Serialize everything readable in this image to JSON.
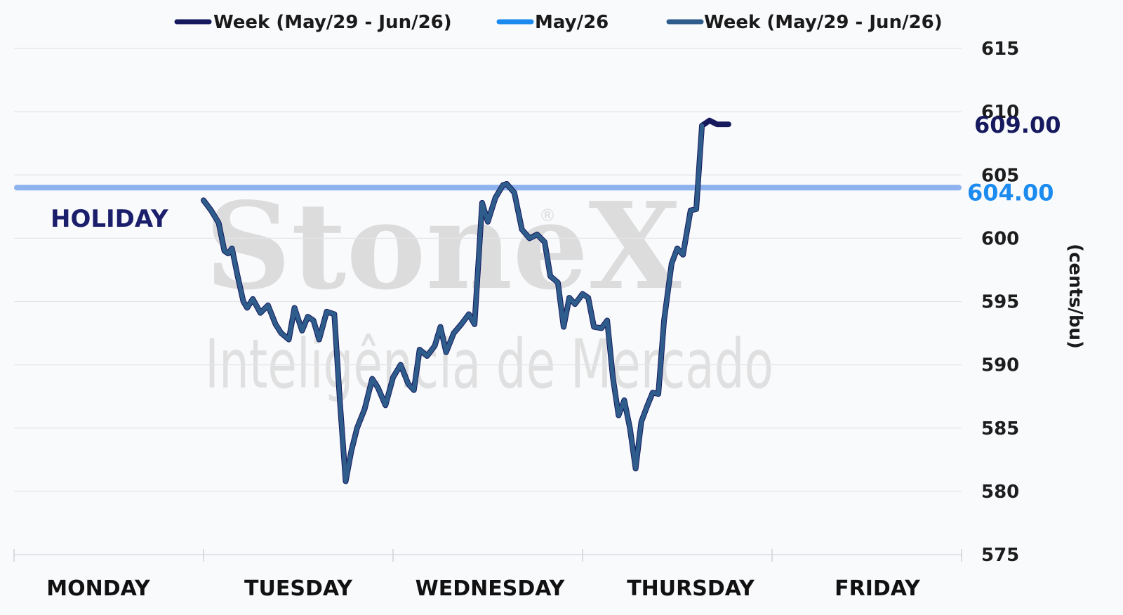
{
  "chart_data": {
    "type": "line",
    "ylabel": "(cents/bu)",
    "ylim": [
      575,
      615
    ],
    "yticks": [
      575,
      580,
      585,
      590,
      595,
      600,
      605,
      610,
      615
    ],
    "days": [
      "MONDAY",
      "TUESDAY",
      "WEDNESDAY",
      "THURSDAY",
      "FRIDAY"
    ],
    "annotation": "HOLIDAY",
    "grid": true,
    "legend_position": "top",
    "watermark": {
      "brand": "StoneX",
      "registered": "®",
      "tagline": "Inteligência de Mercado"
    },
    "series": [
      {
        "name": "Week (May/29 - Jun/26)",
        "color": "#16195e",
        "values": [
          [
            1.0,
            603.0
          ],
          [
            1.04,
            602.2
          ],
          [
            1.08,
            601.2
          ],
          [
            1.11,
            599.0
          ],
          [
            1.13,
            598.8
          ],
          [
            1.15,
            599.2
          ],
          [
            1.18,
            597.0
          ],
          [
            1.21,
            595.0
          ],
          [
            1.23,
            594.5
          ],
          [
            1.26,
            595.2
          ],
          [
            1.3,
            594.1
          ],
          [
            1.34,
            594.7
          ],
          [
            1.38,
            593.2
          ],
          [
            1.41,
            592.5
          ],
          [
            1.45,
            592.0
          ],
          [
            1.48,
            594.5
          ],
          [
            1.52,
            592.7
          ],
          [
            1.55,
            593.8
          ],
          [
            1.58,
            593.5
          ],
          [
            1.61,
            592.0
          ],
          [
            1.65,
            594.2
          ],
          [
            1.69,
            594.0
          ],
          [
            1.72,
            587.0
          ],
          [
            1.75,
            580.8
          ],
          [
            1.78,
            583.2
          ],
          [
            1.81,
            585.0
          ],
          [
            1.85,
            586.5
          ],
          [
            1.89,
            588.9
          ],
          [
            1.92,
            588.2
          ],
          [
            1.96,
            586.8
          ],
          [
            2.0,
            589.0
          ],
          [
            2.04,
            590.0
          ],
          [
            2.08,
            588.5
          ],
          [
            2.11,
            588.0
          ],
          [
            2.14,
            591.2
          ],
          [
            2.18,
            590.7
          ],
          [
            2.22,
            591.5
          ],
          [
            2.25,
            593.0
          ],
          [
            2.28,
            591.0
          ],
          [
            2.32,
            592.5
          ],
          [
            2.36,
            593.2
          ],
          [
            2.4,
            594.0
          ],
          [
            2.43,
            593.2
          ],
          [
            2.47,
            602.8
          ],
          [
            2.5,
            601.3
          ],
          [
            2.54,
            603.2
          ],
          [
            2.58,
            604.2
          ],
          [
            2.6,
            604.3
          ],
          [
            2.64,
            603.6
          ],
          [
            2.68,
            600.7
          ],
          [
            2.72,
            600.0
          ],
          [
            2.76,
            600.3
          ],
          [
            2.8,
            599.7
          ],
          [
            2.83,
            597.0
          ],
          [
            2.87,
            596.5
          ],
          [
            2.9,
            593.0
          ],
          [
            2.93,
            595.3
          ],
          [
            2.96,
            594.8
          ],
          [
            3.0,
            595.6
          ],
          [
            3.03,
            595.3
          ],
          [
            3.06,
            593.0
          ],
          [
            3.1,
            592.9
          ],
          [
            3.13,
            593.5
          ],
          [
            3.16,
            589.0
          ],
          [
            3.19,
            586.0
          ],
          [
            3.22,
            587.2
          ],
          [
            3.25,
            585.0
          ],
          [
            3.28,
            581.8
          ],
          [
            3.31,
            585.5
          ],
          [
            3.34,
            586.7
          ],
          [
            3.37,
            587.8
          ],
          [
            3.4,
            587.7
          ],
          [
            3.43,
            593.5
          ],
          [
            3.47,
            598.0
          ],
          [
            3.5,
            599.2
          ],
          [
            3.53,
            598.7
          ],
          [
            3.57,
            602.2
          ],
          [
            3.6,
            602.3
          ],
          [
            3.63,
            608.9
          ],
          [
            3.67,
            609.3
          ],
          [
            3.71,
            609.0
          ],
          [
            3.74,
            609.0
          ],
          [
            3.77,
            609.0
          ]
        ],
        "last_value": "609.00"
      },
      {
        "name": "May/26",
        "color": "#1c8bef",
        "constant": 604.0,
        "x_range": [
          0,
          3.77
        ],
        "last_value": "604.00"
      },
      {
        "name": "Week (May/29 - Jun/26)",
        "color": "#2e5d8c",
        "values": "same as first series"
      }
    ]
  }
}
